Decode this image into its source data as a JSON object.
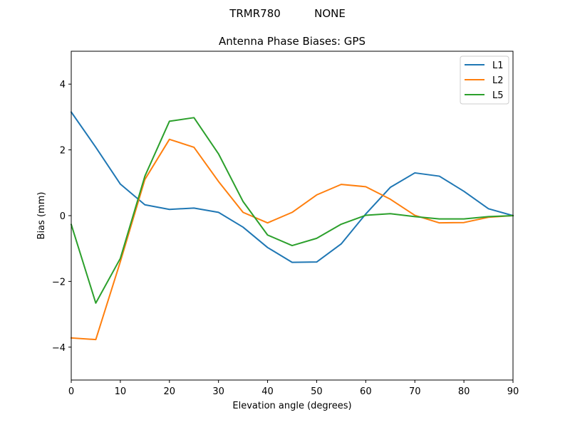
{
  "suptitle": {
    "antenna": "TRMR780",
    "radome": "NONE"
  },
  "chart_data": {
    "type": "line",
    "title": "Antenna Phase Biases: GPS",
    "xlabel": "Elevation angle (degrees)",
    "ylabel": "Bias (mm)",
    "xlim": [
      0,
      90
    ],
    "ylim": [
      -5,
      5
    ],
    "xticks": [
      0,
      10,
      20,
      30,
      40,
      50,
      60,
      70,
      80,
      90
    ],
    "yticks": [
      -4,
      -2,
      0,
      2,
      4
    ],
    "xtick_labels": [
      "0",
      "10",
      "20",
      "30",
      "40",
      "50",
      "60",
      "70",
      "80",
      "90"
    ],
    "ytick_labels": [
      "−4",
      "−2",
      "0",
      "2",
      "4"
    ],
    "grid": false,
    "legend_position": "top-right",
    "x": [
      0,
      5,
      10,
      15,
      20,
      25,
      30,
      35,
      40,
      45,
      50,
      55,
      60,
      65,
      70,
      75,
      80,
      85,
      90
    ],
    "series": [
      {
        "name": "L1",
        "color": "#1f77b4",
        "values": [
          3.15,
          2.08,
          0.96,
          0.33,
          0.19,
          0.23,
          0.1,
          -0.35,
          -0.97,
          -1.42,
          -1.41,
          -0.86,
          0.05,
          0.86,
          1.3,
          1.2,
          0.74,
          0.21,
          0.0
        ]
      },
      {
        "name": "L2",
        "color": "#ff7f0e",
        "values": [
          -3.72,
          -3.77,
          -1.4,
          1.1,
          2.32,
          2.08,
          1.04,
          0.1,
          -0.22,
          0.1,
          0.63,
          0.95,
          0.88,
          0.5,
          0.01,
          -0.22,
          -0.21,
          -0.05,
          0.0
        ]
      },
      {
        "name": "L5",
        "color": "#2ca02c",
        "values": [
          -0.27,
          -2.66,
          -1.3,
          1.2,
          2.87,
          2.98,
          1.88,
          0.43,
          -0.59,
          -0.91,
          -0.69,
          -0.26,
          0.01,
          0.06,
          -0.03,
          -0.1,
          -0.1,
          -0.03,
          0.0
        ]
      }
    ]
  }
}
